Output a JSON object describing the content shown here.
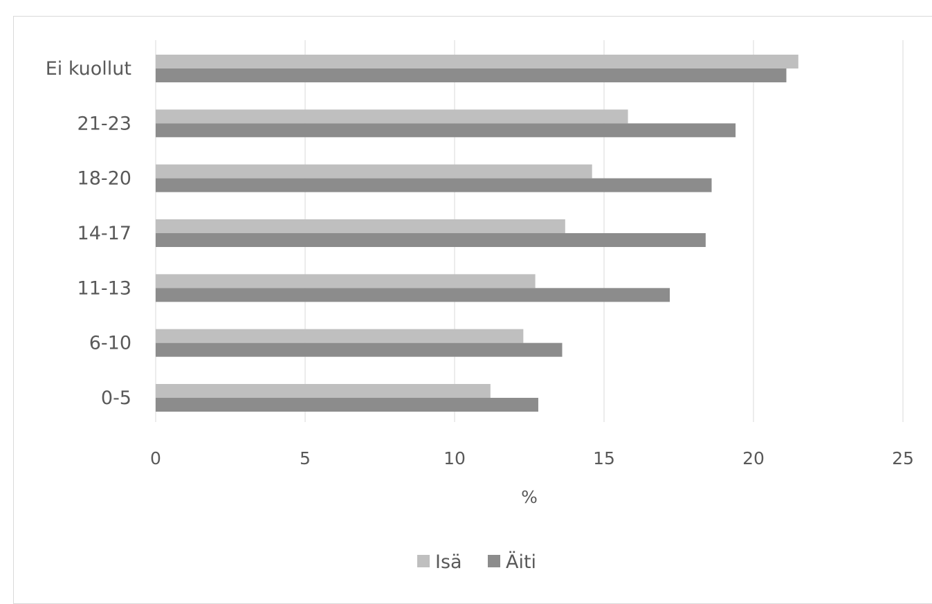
{
  "chart_data": {
    "type": "bar",
    "orientation": "horizontal",
    "categories": [
      "0-5",
      "6-10",
      "11-13",
      "14-17",
      "18-20",
      "21-23",
      "Ei kuollut"
    ],
    "series": [
      {
        "name": "Isä",
        "color": "#bfbfbf",
        "values": [
          11.2,
          12.3,
          12.7,
          13.7,
          14.6,
          15.8,
          21.5
        ]
      },
      {
        "name": "Äiti",
        "color": "#8c8c8c",
        "values": [
          12.8,
          13.6,
          17.2,
          18.4,
          18.6,
          19.4,
          21.1
        ]
      }
    ],
    "title": "",
    "xlabel": "%",
    "ylabel": "",
    "xlim": [
      0,
      25
    ],
    "xticks": [
      "0",
      "5",
      "10",
      "15",
      "20",
      "25"
    ],
    "grid": true,
    "legend_position": "bottom"
  }
}
